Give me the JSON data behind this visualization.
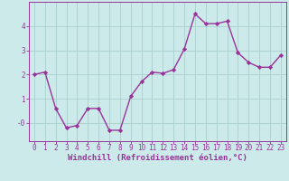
{
  "x": [
    0,
    1,
    2,
    3,
    4,
    5,
    6,
    7,
    8,
    9,
    10,
    11,
    12,
    13,
    14,
    15,
    16,
    17,
    18,
    19,
    20,
    21,
    22,
    23
  ],
  "y": [
    2.0,
    2.1,
    0.6,
    -0.2,
    -0.1,
    0.6,
    0.6,
    -0.3,
    -0.3,
    1.1,
    1.7,
    2.1,
    2.05,
    2.2,
    3.05,
    4.5,
    4.1,
    4.1,
    4.2,
    2.9,
    2.5,
    2.3,
    2.3,
    2.8
  ],
  "line_color": "#993399",
  "marker": "D",
  "marker_size": 2.2,
  "background_color": "#cceaea",
  "grid_color": "#aacece",
  "xlabel": "Windchill (Refroidissement éolien,°C)",
  "xlabel_fontsize": 6.5,
  "ylabel_ticks": [
    0,
    1,
    2,
    3,
    4
  ],
  "ytick_labels": [
    "-0",
    "1",
    "2",
    "3",
    "4"
  ],
  "ylim": [
    -0.75,
    5.0
  ],
  "xlim": [
    -0.5,
    23.5
  ],
  "xtick_labels": [
    "0",
    "1",
    "2",
    "3",
    "4",
    "5",
    "6",
    "7",
    "8",
    "9",
    "10",
    "11",
    "12",
    "13",
    "14",
    "15",
    "16",
    "17",
    "18",
    "19",
    "20",
    "21",
    "22",
    "23"
  ],
  "tick_fontsize": 5.5,
  "linewidth": 1.0
}
